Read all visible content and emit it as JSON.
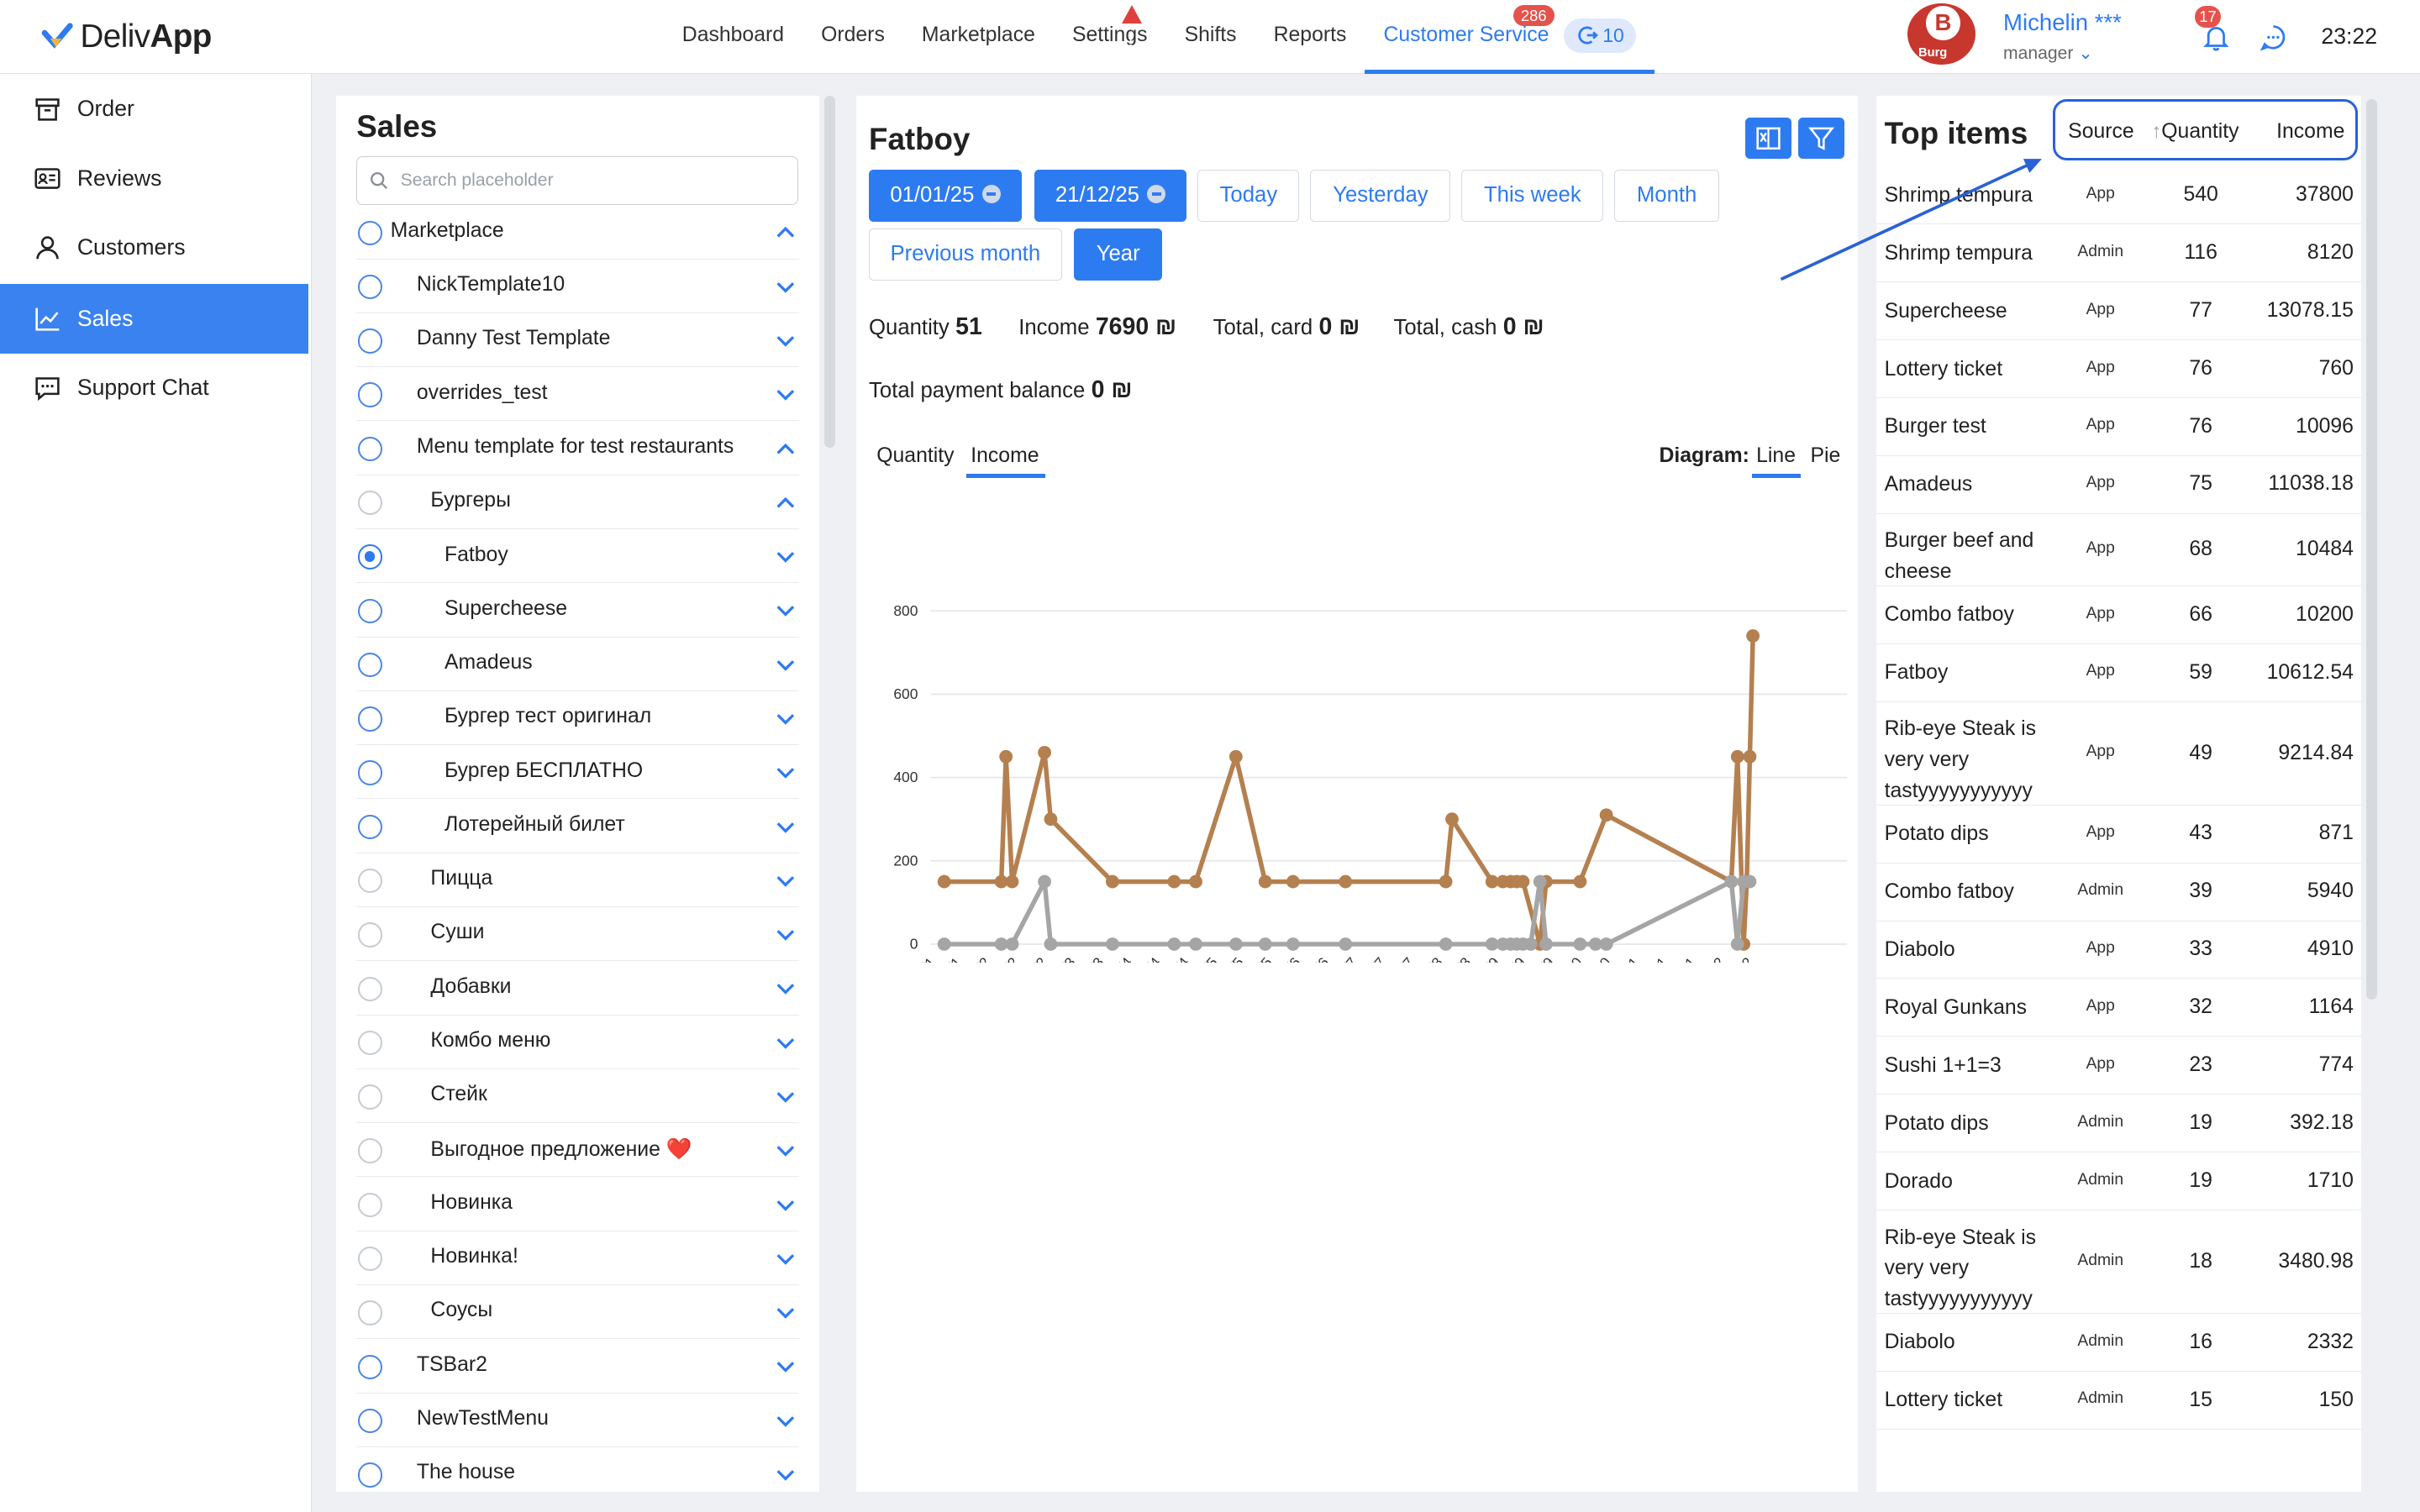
{
  "app": {
    "logo_prefix": "Deliv",
    "logo_bold": "App"
  },
  "nav": {
    "items": [
      "Dashboard",
      "Orders",
      "Marketplace",
      "Settings",
      "Shifts",
      "Reports",
      "Customer Service"
    ],
    "active": "Customer Service",
    "cs_badge": "286",
    "cs_count": "10",
    "settings_alert": "!"
  },
  "user": {
    "name": "Michelin ***",
    "role": "manager",
    "avatar_letter": "B",
    "avatar_caption": "Burg",
    "notifications": "17"
  },
  "clock": "23:22",
  "sidebar": {
    "items": [
      "Order",
      "Reviews",
      "Customers",
      "Sales",
      "Support Chat"
    ],
    "active": "Sales"
  },
  "sales": {
    "title": "Sales",
    "search_placeholder": "Search placeholder",
    "tree": [
      {
        "label": "Marketplace",
        "level": 0,
        "state": "empty",
        "expanded": true
      },
      {
        "label": "NickTemplate10",
        "level": 1,
        "state": "empty",
        "expanded": false
      },
      {
        "label": "Danny Test Template",
        "level": 1,
        "state": "empty",
        "expanded": false
      },
      {
        "label": "overrides_test",
        "level": 1,
        "state": "empty",
        "expanded": false
      },
      {
        "label": "Menu template for test restaurants",
        "level": 1,
        "state": "empty",
        "expanded": true
      },
      {
        "label": "Бургеры",
        "level": 2,
        "state": "dim",
        "expanded": true
      },
      {
        "label": "Fatboy",
        "level": 3,
        "state": "checked",
        "expanded": false
      },
      {
        "label": "Supercheese",
        "level": 3,
        "state": "empty",
        "expanded": false
      },
      {
        "label": "Amadeus",
        "level": 3,
        "state": "empty",
        "expanded": false
      },
      {
        "label": "Бургер тест оригинал",
        "level": 3,
        "state": "empty",
        "expanded": false
      },
      {
        "label": "Бургер БЕСПЛАТНО",
        "level": 3,
        "state": "empty",
        "expanded": false
      },
      {
        "label": "Лотерейный билет",
        "level": 3,
        "state": "empty",
        "expanded": false
      },
      {
        "label": "Пицца",
        "level": 2,
        "state": "dim",
        "expanded": false
      },
      {
        "label": "Суши",
        "level": 2,
        "state": "dim",
        "expanded": false
      },
      {
        "label": "Добавки",
        "level": 2,
        "state": "dim",
        "expanded": false
      },
      {
        "label": "Комбо меню",
        "level": 2,
        "state": "dim",
        "expanded": false
      },
      {
        "label": "Стейк",
        "level": 2,
        "state": "dim",
        "expanded": false
      },
      {
        "label": "Выгодное предложение ❤️",
        "level": 2,
        "state": "dim",
        "expanded": false
      },
      {
        "label": "Новинка",
        "level": 2,
        "state": "dim",
        "expanded": false
      },
      {
        "label": "Новинка!",
        "level": 2,
        "state": "dim",
        "expanded": false
      },
      {
        "label": "Соусы",
        "level": 2,
        "state": "dim",
        "expanded": false
      },
      {
        "label": "TSBar2",
        "level": 1,
        "state": "empty",
        "expanded": false
      },
      {
        "label": "NewTestMenu",
        "level": 1,
        "state": "empty",
        "expanded": false
      },
      {
        "label": "The house",
        "level": 1,
        "state": "empty",
        "expanded": false
      }
    ]
  },
  "detail": {
    "title": "Fatboy",
    "date_from": "01/01/25",
    "date_to": "21/12/25",
    "range_buttons": [
      "Today",
      "Yesterday",
      "This week",
      "Month",
      "Previous month",
      "Year"
    ],
    "active_range": "Year",
    "stats": {
      "quantity_label": "Quantity",
      "quantity": "51",
      "income_label": "Income",
      "income": "7690 ₪",
      "card_label": "Total, card",
      "card": "0 ₪",
      "cash_label": "Total, cash",
      "cash": "0 ₪",
      "balance_label": "Total payment balance",
      "balance": "0 ₪"
    },
    "tabs": [
      "Quantity",
      "Income"
    ],
    "active_tab": "Income",
    "diagram_label": "Diagram:",
    "diagram_options": [
      "Line",
      "Pie"
    ],
    "active_diagram": "Line"
  },
  "chart_data": {
    "type": "line",
    "x": [
      "9/1",
      "20/1",
      "1/2",
      "13/2",
      "25/2",
      "9/3",
      "21/3",
      "2/4",
      "14/4",
      "26/4",
      "8/5",
      "19/5",
      "31/5",
      "12/6",
      "24/6",
      "6/7",
      "18/7",
      "30/7",
      "11/8",
      "23/8",
      "4/9",
      "15/9",
      "27/9",
      "9/10",
      "21/10",
      "2/11",
      "14/11",
      "26/11",
      "8/12",
      "20/12"
    ],
    "x_positions": [
      0,
      11,
      23,
      35,
      47,
      59,
      71,
      83,
      95,
      107,
      119,
      130,
      142,
      154,
      166,
      178,
      190,
      202,
      214,
      226,
      238,
      249,
      261,
      273,
      285,
      297,
      309,
      321,
      333,
      345
    ],
    "ylim": [
      0,
      800
    ],
    "yticks": [
      0,
      200,
      400,
      600,
      800
    ],
    "series": [
      {
        "name": "App",
        "color": "#b5804f",
        "points": [
          [
            9,
            150
          ],
          [
            46,
            150
          ],
          [
            49,
            450
          ],
          [
            53,
            150
          ],
          [
            74,
            460
          ],
          [
            78,
            300
          ],
          [
            118,
            150
          ],
          [
            158,
            150
          ],
          [
            172,
            150
          ],
          [
            198,
            450
          ],
          [
            217,
            150
          ],
          [
            235,
            150
          ],
          [
            269,
            150
          ],
          [
            334,
            150
          ],
          [
            338,
            300
          ],
          [
            364,
            150
          ],
          [
            371,
            150
          ],
          [
            376,
            150
          ],
          [
            380,
            150
          ],
          [
            384,
            150
          ],
          [
            395,
            0
          ],
          [
            399,
            150
          ],
          [
            421,
            150
          ],
          [
            438,
            310
          ],
          [
            519,
            150
          ],
          [
            523,
            450
          ],
          [
            527,
            0
          ],
          [
            529,
            150
          ],
          [
            531,
            450
          ],
          [
            533,
            740
          ]
        ]
      },
      {
        "name": "Admin",
        "color": "#a5a5a5",
        "points": [
          [
            9,
            0
          ],
          [
            46,
            0
          ],
          [
            53,
            0
          ],
          [
            74,
            150
          ],
          [
            78,
            0
          ],
          [
            118,
            0
          ],
          [
            158,
            0
          ],
          [
            172,
            0
          ],
          [
            198,
            0
          ],
          [
            217,
            0
          ],
          [
            235,
            0
          ],
          [
            269,
            0
          ],
          [
            334,
            0
          ],
          [
            364,
            0
          ],
          [
            371,
            0
          ],
          [
            376,
            0
          ],
          [
            380,
            0
          ],
          [
            384,
            0
          ],
          [
            389,
            0
          ],
          [
            395,
            150
          ],
          [
            399,
            0
          ],
          [
            421,
            0
          ],
          [
            431,
            0
          ],
          [
            438,
            0
          ],
          [
            519,
            150
          ],
          [
            523,
            0
          ],
          [
            527,
            150
          ],
          [
            531,
            150
          ]
        ]
      }
    ]
  },
  "top_items": {
    "title": "Top items",
    "columns": [
      "Source",
      "Quantity",
      "Income"
    ],
    "rows": [
      {
        "name": "Shrimp tempura",
        "source": "App",
        "qty": "540",
        "income": "37800"
      },
      {
        "name": "Shrimp tempura",
        "source": "Admin",
        "qty": "116",
        "income": "8120"
      },
      {
        "name": "Supercheese",
        "source": "App",
        "qty": "77",
        "income": "13078.15"
      },
      {
        "name": "Lottery ticket",
        "source": "App",
        "qty": "76",
        "income": "760"
      },
      {
        "name": "Burger test",
        "source": "App",
        "qty": "76",
        "income": "10096"
      },
      {
        "name": "Amadeus",
        "source": "App",
        "qty": "75",
        "income": "11038.18"
      },
      {
        "name": "Burger beef and cheese",
        "source": "App",
        "qty": "68",
        "income": "10484"
      },
      {
        "name": "Combo fatboy",
        "source": "App",
        "qty": "66",
        "income": "10200"
      },
      {
        "name": "Fatboy",
        "source": "App",
        "qty": "59",
        "income": "10612.54"
      },
      {
        "name": "Rib-eye Steak is very very tastyyyyyyyyyyy",
        "source": "App",
        "qty": "49",
        "income": "9214.84"
      },
      {
        "name": "Potato dips",
        "source": "App",
        "qty": "43",
        "income": "871"
      },
      {
        "name": "Combo fatboy",
        "source": "Admin",
        "qty": "39",
        "income": "5940"
      },
      {
        "name": "Diabolo",
        "source": "App",
        "qty": "33",
        "income": "4910"
      },
      {
        "name": "Royal Gunkans",
        "source": "App",
        "qty": "32",
        "income": "1164"
      },
      {
        "name": "Sushi 1+1=3",
        "source": "App",
        "qty": "23",
        "income": "774"
      },
      {
        "name": "Potato dips",
        "source": "Admin",
        "qty": "19",
        "income": "392.18"
      },
      {
        "name": "Dorado",
        "source": "Admin",
        "qty": "19",
        "income": "1710"
      },
      {
        "name": "Rib-eye Steak is very very tastyyyyyyyyyyy",
        "source": "Admin",
        "qty": "18",
        "income": "3480.98"
      },
      {
        "name": "Diabolo",
        "source": "Admin",
        "qty": "16",
        "income": "2332"
      },
      {
        "name": "Lottery ticket",
        "source": "Admin",
        "qty": "15",
        "income": "150"
      }
    ]
  }
}
